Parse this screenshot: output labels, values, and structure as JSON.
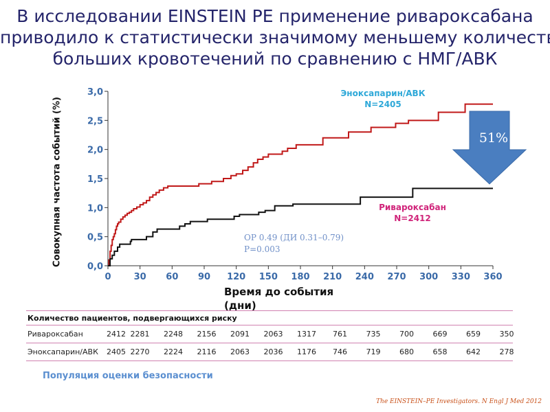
{
  "title_lines": [
    "В исследовании EINSTEIN PE применение ривароксабана",
    "приводило  к статистически значимому меньшему количеству",
    "больших кровотечений по сравнению с НМГ/АВК"
  ],
  "chart_data": {
    "type": "line",
    "ylabel": "Совокупная частота событий (%)",
    "xlabel": "Время до события (дни)",
    "x_ticks": [
      "0",
      "30",
      "60",
      "90",
      "120",
      "150",
      "180",
      "210",
      "240",
      "270",
      "300",
      "330",
      "360"
    ],
    "y_ticks": [
      "0,0",
      "0,5",
      "1,0",
      "1,5",
      "2,0",
      "2,5",
      "3,0"
    ],
    "xlim": [
      0,
      360
    ],
    "ylim": [
      0,
      3.0
    ],
    "series": [
      {
        "name": "Эноксапарин/АВК",
        "color": "#c01818",
        "steps": [
          [
            0,
            0
          ],
          [
            1,
            0.1
          ],
          [
            2,
            0.25
          ],
          [
            3,
            0.35
          ],
          [
            4,
            0.45
          ],
          [
            5,
            0.5
          ],
          [
            6,
            0.55
          ],
          [
            7,
            0.62
          ],
          [
            8,
            0.68
          ],
          [
            9,
            0.72
          ],
          [
            10,
            0.75
          ],
          [
            12,
            0.8
          ],
          [
            14,
            0.84
          ],
          [
            16,
            0.87
          ],
          [
            18,
            0.9
          ],
          [
            20,
            0.92
          ],
          [
            22,
            0.95
          ],
          [
            24,
            0.98
          ],
          [
            27,
            1.01
          ],
          [
            30,
            1.05
          ],
          [
            33,
            1.08
          ],
          [
            36,
            1.12
          ],
          [
            39,
            1.18
          ],
          [
            42,
            1.22
          ],
          [
            45,
            1.26
          ],
          [
            48,
            1.3
          ],
          [
            52,
            1.34
          ],
          [
            56,
            1.37
          ],
          [
            85,
            1.41
          ],
          [
            97,
            1.45
          ],
          [
            108,
            1.5
          ],
          [
            115,
            1.55
          ],
          [
            120,
            1.58
          ],
          [
            126,
            1.64
          ],
          [
            131,
            1.7
          ],
          [
            136,
            1.77
          ],
          [
            140,
            1.83
          ],
          [
            145,
            1.87
          ],
          [
            150,
            1.92
          ],
          [
            163,
            1.97
          ],
          [
            168,
            2.02
          ],
          [
            176,
            2.08
          ],
          [
            201,
            2.2
          ],
          [
            225,
            2.3
          ],
          [
            246,
            2.38
          ],
          [
            269,
            2.45
          ],
          [
            281,
            2.5
          ],
          [
            309,
            2.64
          ],
          [
            334,
            2.78
          ],
          [
            360,
            2.78
          ]
        ]
      },
      {
        "name": "Ривароксабан",
        "color": "#111111",
        "steps": [
          [
            0,
            0
          ],
          [
            2,
            0.12
          ],
          [
            4,
            0.18
          ],
          [
            6,
            0.25
          ],
          [
            9,
            0.32
          ],
          [
            11,
            0.37
          ],
          [
            21,
            0.42
          ],
          [
            22,
            0.45
          ],
          [
            36,
            0.5
          ],
          [
            42,
            0.58
          ],
          [
            46,
            0.63
          ],
          [
            67,
            0.68
          ],
          [
            72,
            0.72
          ],
          [
            77,
            0.76
          ],
          [
            93,
            0.8
          ],
          [
            118,
            0.85
          ],
          [
            123,
            0.88
          ],
          [
            141,
            0.92
          ],
          [
            147,
            0.95
          ],
          [
            156,
            1.03
          ],
          [
            173,
            1.06
          ],
          [
            236,
            1.18
          ],
          [
            285,
            1.33
          ],
          [
            360,
            1.33
          ]
        ]
      }
    ],
    "series_labels": {
      "enox": [
        "Эноксапарин/АВК",
        "N=2405"
      ],
      "riva": [
        "Ривароксабан",
        "N=2412"
      ]
    },
    "stats": [
      "ОР 0.49 (ДИ 0.31–0.79)",
      "P=0.003"
    ],
    "reduction": "51%"
  },
  "risk_table": {
    "header": "Количество пациентов, подвергающихся риску",
    "rows": [
      {
        "name": "Ривароксабан",
        "values": [
          "2412",
          "2281",
          "2248",
          "2156",
          "2091",
          "2063",
          "1317",
          "761",
          "735",
          "700",
          "669",
          "659",
          "350"
        ]
      },
      {
        "name": "Эноксапарин/АВК",
        "values": [
          "2405",
          "2270",
          "2224",
          "2116",
          "2063",
          "2036",
          "1176",
          "746",
          "719",
          "680",
          "658",
          "642",
          "278"
        ]
      }
    ]
  },
  "footnote": "Популяция оценки безопасности",
  "citation": "The EINSTEIN–PE Investigators. N Engl J Med 2012"
}
